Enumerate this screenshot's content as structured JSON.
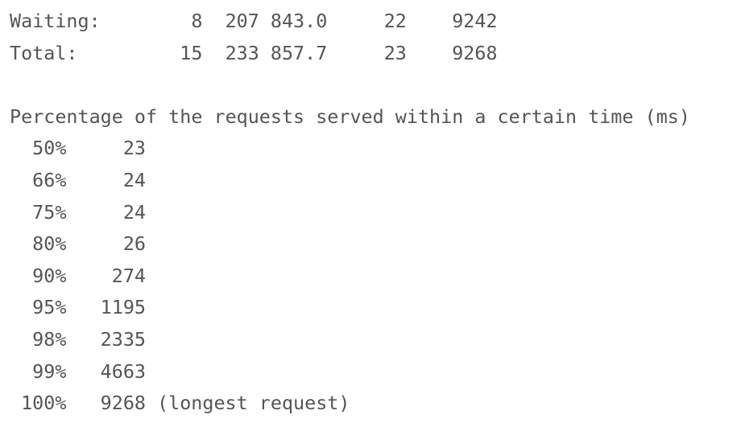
{
  "connection_times": [
    {
      "label": "Waiting:",
      "min": "8",
      "mean": "207",
      "sd": "843.0",
      "median": "22",
      "max": "9242"
    },
    {
      "label": "Total:",
      "min": "15",
      "mean": "233",
      "sd": "857.7",
      "median": "23",
      "max": "9268"
    }
  ],
  "percentiles": {
    "heading": "Percentage of the requests served within a certain time (ms)",
    "rows": [
      {
        "pct": "50%",
        "ms": "23"
      },
      {
        "pct": "66%",
        "ms": "24"
      },
      {
        "pct": "75%",
        "ms": "24"
      },
      {
        "pct": "80%",
        "ms": "26"
      },
      {
        "pct": "90%",
        "ms": "274"
      },
      {
        "pct": "95%",
        "ms": "1195"
      },
      {
        "pct": "98%",
        "ms": "2335"
      },
      {
        "pct": "99%",
        "ms": "4663"
      },
      {
        "pct": "100%",
        "ms": "9268",
        "note": "(longest request)"
      }
    ]
  }
}
